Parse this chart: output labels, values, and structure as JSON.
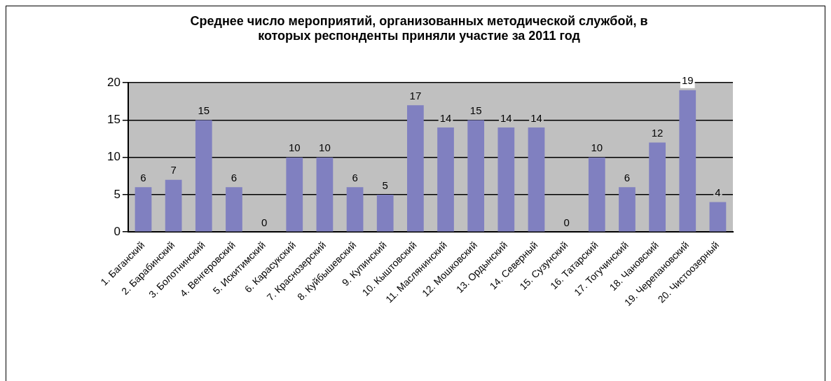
{
  "chart_data": {
    "type": "bar",
    "title": [
      "Среднее число мероприятий, организованных методической службой, в",
      "которых респонденты приняли участие за 2011 год"
    ],
    "categories": [
      "1. Баганский",
      "2. Барабинский",
      "3. Болотнинский",
      "4. Венгеровский",
      "5. Искитимский",
      "6. Карасукский",
      "7. Краснозерский",
      "8. Куйбышевский",
      "9. Купинский",
      "10. Кыштовский",
      "11. Маслянинский",
      "12. Мошковский",
      "13. Ордынский",
      "14. Северный",
      "15. Сузунский",
      "16. Татарский",
      "17. Тогучинский",
      "18. Чановский",
      "19. Черепановский",
      "20. Чистоозерный"
    ],
    "values": [
      6,
      7,
      15,
      6,
      0,
      10,
      10,
      6,
      5,
      17,
      14,
      15,
      14,
      14,
      0,
      10,
      6,
      12,
      19,
      4
    ],
    "color": "#8080c0",
    "ylim": [
      0,
      20
    ],
    "yticks": [
      0,
      5,
      10,
      15,
      20
    ],
    "grid": "y",
    "legend": false,
    "data_labels": true
  }
}
